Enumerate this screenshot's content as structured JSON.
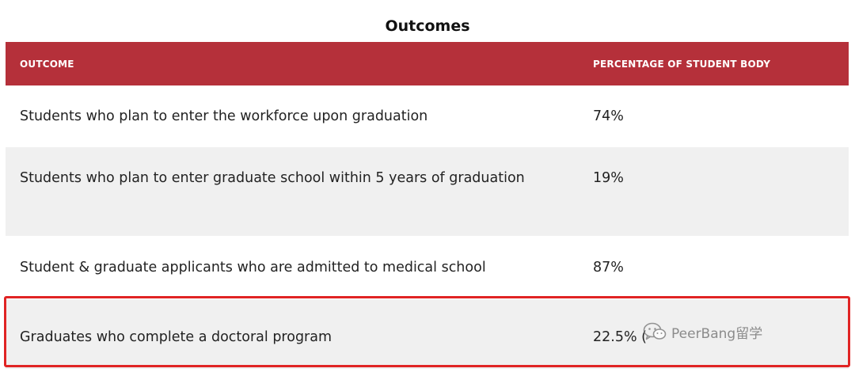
{
  "title": "Outcomes",
  "table": {
    "headers": [
      "OUTCOME",
      "PERCENTAGE OF STUDENT BODY"
    ],
    "rows": [
      {
        "outcome": "Students who plan to enter the workforce upon graduation",
        "percentage": "74%"
      },
      {
        "outcome": "Students who plan to enter graduate school within 5 years of graduation",
        "percentage": "19%"
      },
      {
        "outcome": "Student & graduate applicants who are admitted to medical school",
        "percentage": "87%"
      },
      {
        "outcome": "Graduates who complete a doctoral program",
        "percentage": "22.5% ("
      }
    ]
  },
  "watermark": {
    "text": "PeerBang留学",
    "icon": "wechat-icon"
  },
  "colors": {
    "header_bg": "#b5303a",
    "highlight": "#e02424",
    "stripe": "#f0f0f0"
  }
}
